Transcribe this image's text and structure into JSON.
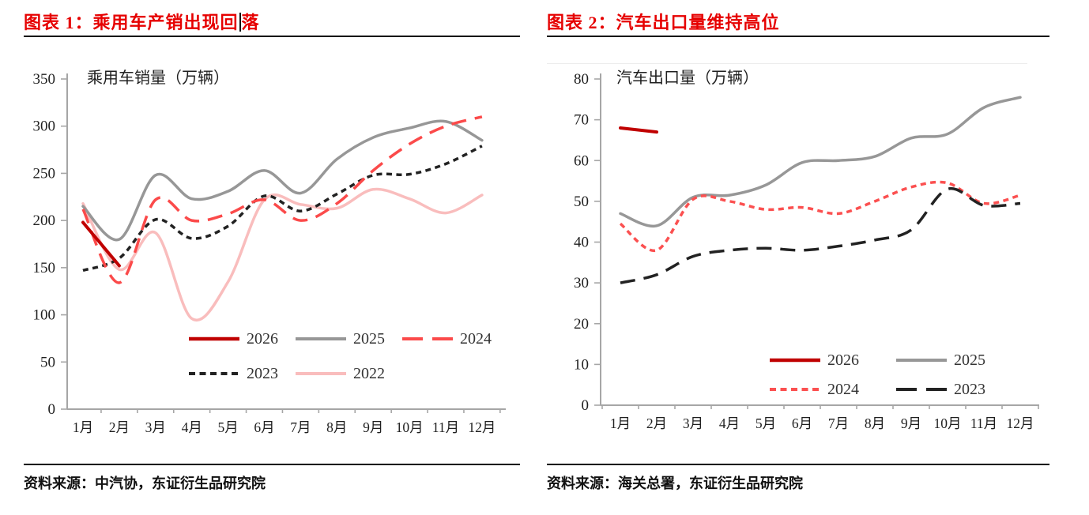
{
  "figures": [
    {
      "title_main": "图表 1：乘用车产销出现回",
      "title_tail": "落",
      "source": "资料来源：中汽协，东证衍生品研究院",
      "chart_data": {
        "type": "line",
        "title": "乘用车销量（万辆）",
        "categories": [
          "1月",
          "2月",
          "3月",
          "4月",
          "5月",
          "6月",
          "7月",
          "8月",
          "9月",
          "10月",
          "11月",
          "12月"
        ],
        "ylim": [
          0,
          350
        ],
        "y_ticks": [
          0,
          50,
          100,
          150,
          200,
          250,
          300,
          350
        ],
        "grid": false,
        "legend_position": "inside-bottom-center",
        "legend_rows": [
          [
            "2026",
            "2025",
            "2024"
          ],
          [
            "2023",
            "2022"
          ]
        ],
        "series": [
          {
            "name": "2026",
            "color": "#c00000",
            "style": "solid",
            "values": [
              198,
              152,
              null,
              null,
              null,
              null,
              null,
              null,
              null,
              null,
              null,
              null
            ]
          },
          {
            "name": "2025",
            "color": "#979797",
            "style": "solid",
            "values": [
              215,
              180,
              248,
              223,
              231,
              253,
              229,
              265,
              288,
              298,
              305,
              285
            ]
          },
          {
            "name": "2024",
            "color": "#fb4a4a",
            "style": "dash-long",
            "values": [
              212,
              134,
              222,
              200,
              207,
              222,
              200,
              218,
              253,
              281,
              300,
              310
            ]
          },
          {
            "name": "2023",
            "color": "#222222",
            "style": "dash-short",
            "values": [
              147,
              160,
              201,
              181,
              194,
              226,
              210,
              228,
              248,
              249,
              260,
              279
            ]
          },
          {
            "name": "2022",
            "color": "#f9bdbd",
            "style": "solid",
            "values": [
              218,
              148,
              187,
              96,
              135,
              222,
              217,
              213,
              233,
              223,
              208,
              227
            ]
          }
        ]
      }
    },
    {
      "title_main": "图表 2：汽车出口量维持高位",
      "title_tail": "",
      "source": "资料来源：海关总署，东证衍生品研究院",
      "chart_data": {
        "type": "line",
        "title": "汽车出口量（万辆）",
        "categories": [
          "1月",
          "2月",
          "3月",
          "4月",
          "5月",
          "6月",
          "7月",
          "8月",
          "9月",
          "10月",
          "11月",
          "12月"
        ],
        "ylim": [
          0,
          80
        ],
        "y_ticks": [
          0,
          10,
          20,
          30,
          40,
          50,
          60,
          70,
          80
        ],
        "grid": false,
        "legend_position": "inside-bottom-center",
        "legend_rows": [
          [
            "2026",
            "2025"
          ],
          [
            "2024",
            "2023"
          ]
        ],
        "series": [
          {
            "name": "2026",
            "color": "#c00000",
            "style": "solid",
            "values": [
              68,
              67,
              null,
              null,
              null,
              null,
              null,
              null,
              null,
              null,
              null,
              null
            ]
          },
          {
            "name": "2025",
            "color": "#979797",
            "style": "solid",
            "values": [
              47,
              44,
              51,
              51.5,
              54,
              59.5,
              60,
              61,
              65.5,
              66.5,
              73,
              75.5
            ]
          },
          {
            "name": "2024",
            "color": "#fb5050",
            "style": "dash-short",
            "values": [
              44.5,
              38,
              50.5,
              50,
              48,
              48.5,
              47,
              50,
              53.5,
              54.5,
              49.5,
              51.5
            ]
          },
          {
            "name": "2023",
            "color": "#222222",
            "style": "dash-long",
            "values": [
              30,
              32,
              36.5,
              38,
              38.5,
              38,
              39,
              40.5,
              43,
              53,
              49,
              49.5
            ]
          }
        ]
      }
    }
  ]
}
